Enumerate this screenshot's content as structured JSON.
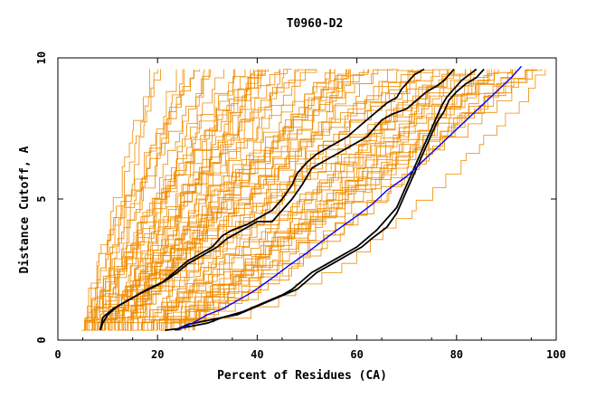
{
  "chart_data": {
    "type": "line",
    "title": "T0960-D2",
    "xlabel": "Percent of Residues (CA)",
    "ylabel": "Distance Cutoff, A",
    "xlim": [
      0,
      100
    ],
    "ylim": [
      0,
      10
    ],
    "x_ticks": [
      "0",
      "20",
      "40",
      "60",
      "80",
      "100"
    ],
    "y_ticks": [
      "0",
      "5",
      "10"
    ],
    "x_tick_values": [
      0,
      20,
      40,
      60,
      80,
      100
    ],
    "y_tick_values": [
      0,
      5,
      10
    ],
    "grid": false,
    "legend": "none",
    "colors": {
      "background_models": "#f08c00",
      "highlight_models": "#000000",
      "reference_model": "#0000ff"
    },
    "background_model_count": 80,
    "background_x_range": {
      "at_0_5A": [
        4.5,
        26
      ],
      "at_9_5A": [
        22,
        100
      ]
    },
    "series": [
      {
        "color": "#000000",
        "x": [
          8.5,
          9,
          10,
          12,
          15,
          18,
          21,
          22,
          24,
          26,
          28,
          31,
          33,
          35,
          38,
          40,
          43,
          45,
          47,
          48,
          50,
          52,
          55,
          58,
          60,
          62,
          64,
          66,
          68,
          69,
          70,
          71.5,
          73.5
        ],
        "y": [
          0.35,
          0.6,
          0.9,
          1.2,
          1.5,
          1.8,
          2.05,
          2.2,
          2.5,
          2.8,
          3.0,
          3.3,
          3.7,
          3.9,
          4.1,
          4.3,
          4.6,
          5.0,
          5.5,
          5.9,
          6.3,
          6.6,
          6.9,
          7.2,
          7.5,
          7.8,
          8.1,
          8.4,
          8.6,
          8.9,
          9.1,
          9.4,
          9.6
        ]
      },
      {
        "color": "#000000",
        "x": [
          8.5,
          9,
          11,
          14,
          17,
          20,
          22,
          24,
          26,
          29,
          32,
          34,
          37,
          40,
          43,
          45,
          47,
          49,
          51,
          53,
          56,
          59,
          62,
          64,
          65,
          67,
          70,
          72,
          74,
          76,
          77.5,
          78.5,
          79.5
        ],
        "y": [
          0.35,
          0.8,
          1.1,
          1.4,
          1.7,
          1.95,
          2.15,
          2.4,
          2.7,
          3.0,
          3.3,
          3.6,
          3.9,
          4.2,
          4.2,
          4.6,
          5.0,
          5.5,
          6.1,
          6.3,
          6.6,
          6.9,
          7.2,
          7.6,
          7.8,
          8.0,
          8.2,
          8.5,
          8.8,
          9.0,
          9.2,
          9.4,
          9.6
        ]
      },
      {
        "color": "#000000",
        "x": [
          23.5,
          26,
          30,
          33,
          36,
          40,
          44,
          48,
          50,
          52,
          55,
          58,
          61,
          63,
          66,
          68,
          69,
          70,
          71,
          72,
          73,
          74,
          75,
          76,
          77.5,
          78.5,
          80,
          82,
          84,
          85.5
        ],
        "y": [
          0.35,
          0.55,
          0.7,
          0.8,
          0.9,
          1.2,
          1.5,
          1.8,
          2.1,
          2.4,
          2.7,
          3.0,
          3.3,
          3.6,
          4.0,
          4.5,
          4.9,
          5.3,
          5.7,
          6.1,
          6.5,
          6.9,
          7.3,
          7.7,
          8.1,
          8.5,
          8.8,
          9.1,
          9.3,
          9.6
        ]
      },
      {
        "color": "#000000",
        "x": [
          21.5,
          24,
          27,
          30,
          33,
          37,
          41,
          45,
          47,
          49,
          51,
          54,
          57,
          60,
          62,
          64,
          66,
          68,
          69,
          70,
          71,
          72,
          73,
          74,
          75,
          76,
          77,
          78,
          79.5,
          81,
          82.5,
          84
        ],
        "y": [
          0.35,
          0.4,
          0.5,
          0.6,
          0.8,
          1.0,
          1.3,
          1.6,
          1.8,
          2.1,
          2.4,
          2.7,
          3.0,
          3.3,
          3.6,
          3.9,
          4.3,
          4.7,
          5.1,
          5.5,
          5.9,
          6.3,
          6.7,
          7.1,
          7.5,
          7.9,
          8.3,
          8.6,
          8.9,
          9.2,
          9.4,
          9.6
        ]
      },
      {
        "color": "#0000ff",
        "x": [
          24,
          27,
          30,
          33,
          36,
          39,
          43,
          46,
          50,
          53,
          56,
          60,
          63,
          66,
          70,
          73,
          76,
          79,
          82,
          85,
          88,
          91,
          93
        ],
        "y": [
          0.35,
          0.6,
          0.9,
          1.1,
          1.4,
          1.7,
          2.2,
          2.6,
          3.1,
          3.5,
          3.9,
          4.4,
          4.8,
          5.3,
          5.8,
          6.3,
          6.8,
          7.3,
          7.8,
          8.3,
          8.8,
          9.3,
          9.7
        ]
      }
    ]
  }
}
